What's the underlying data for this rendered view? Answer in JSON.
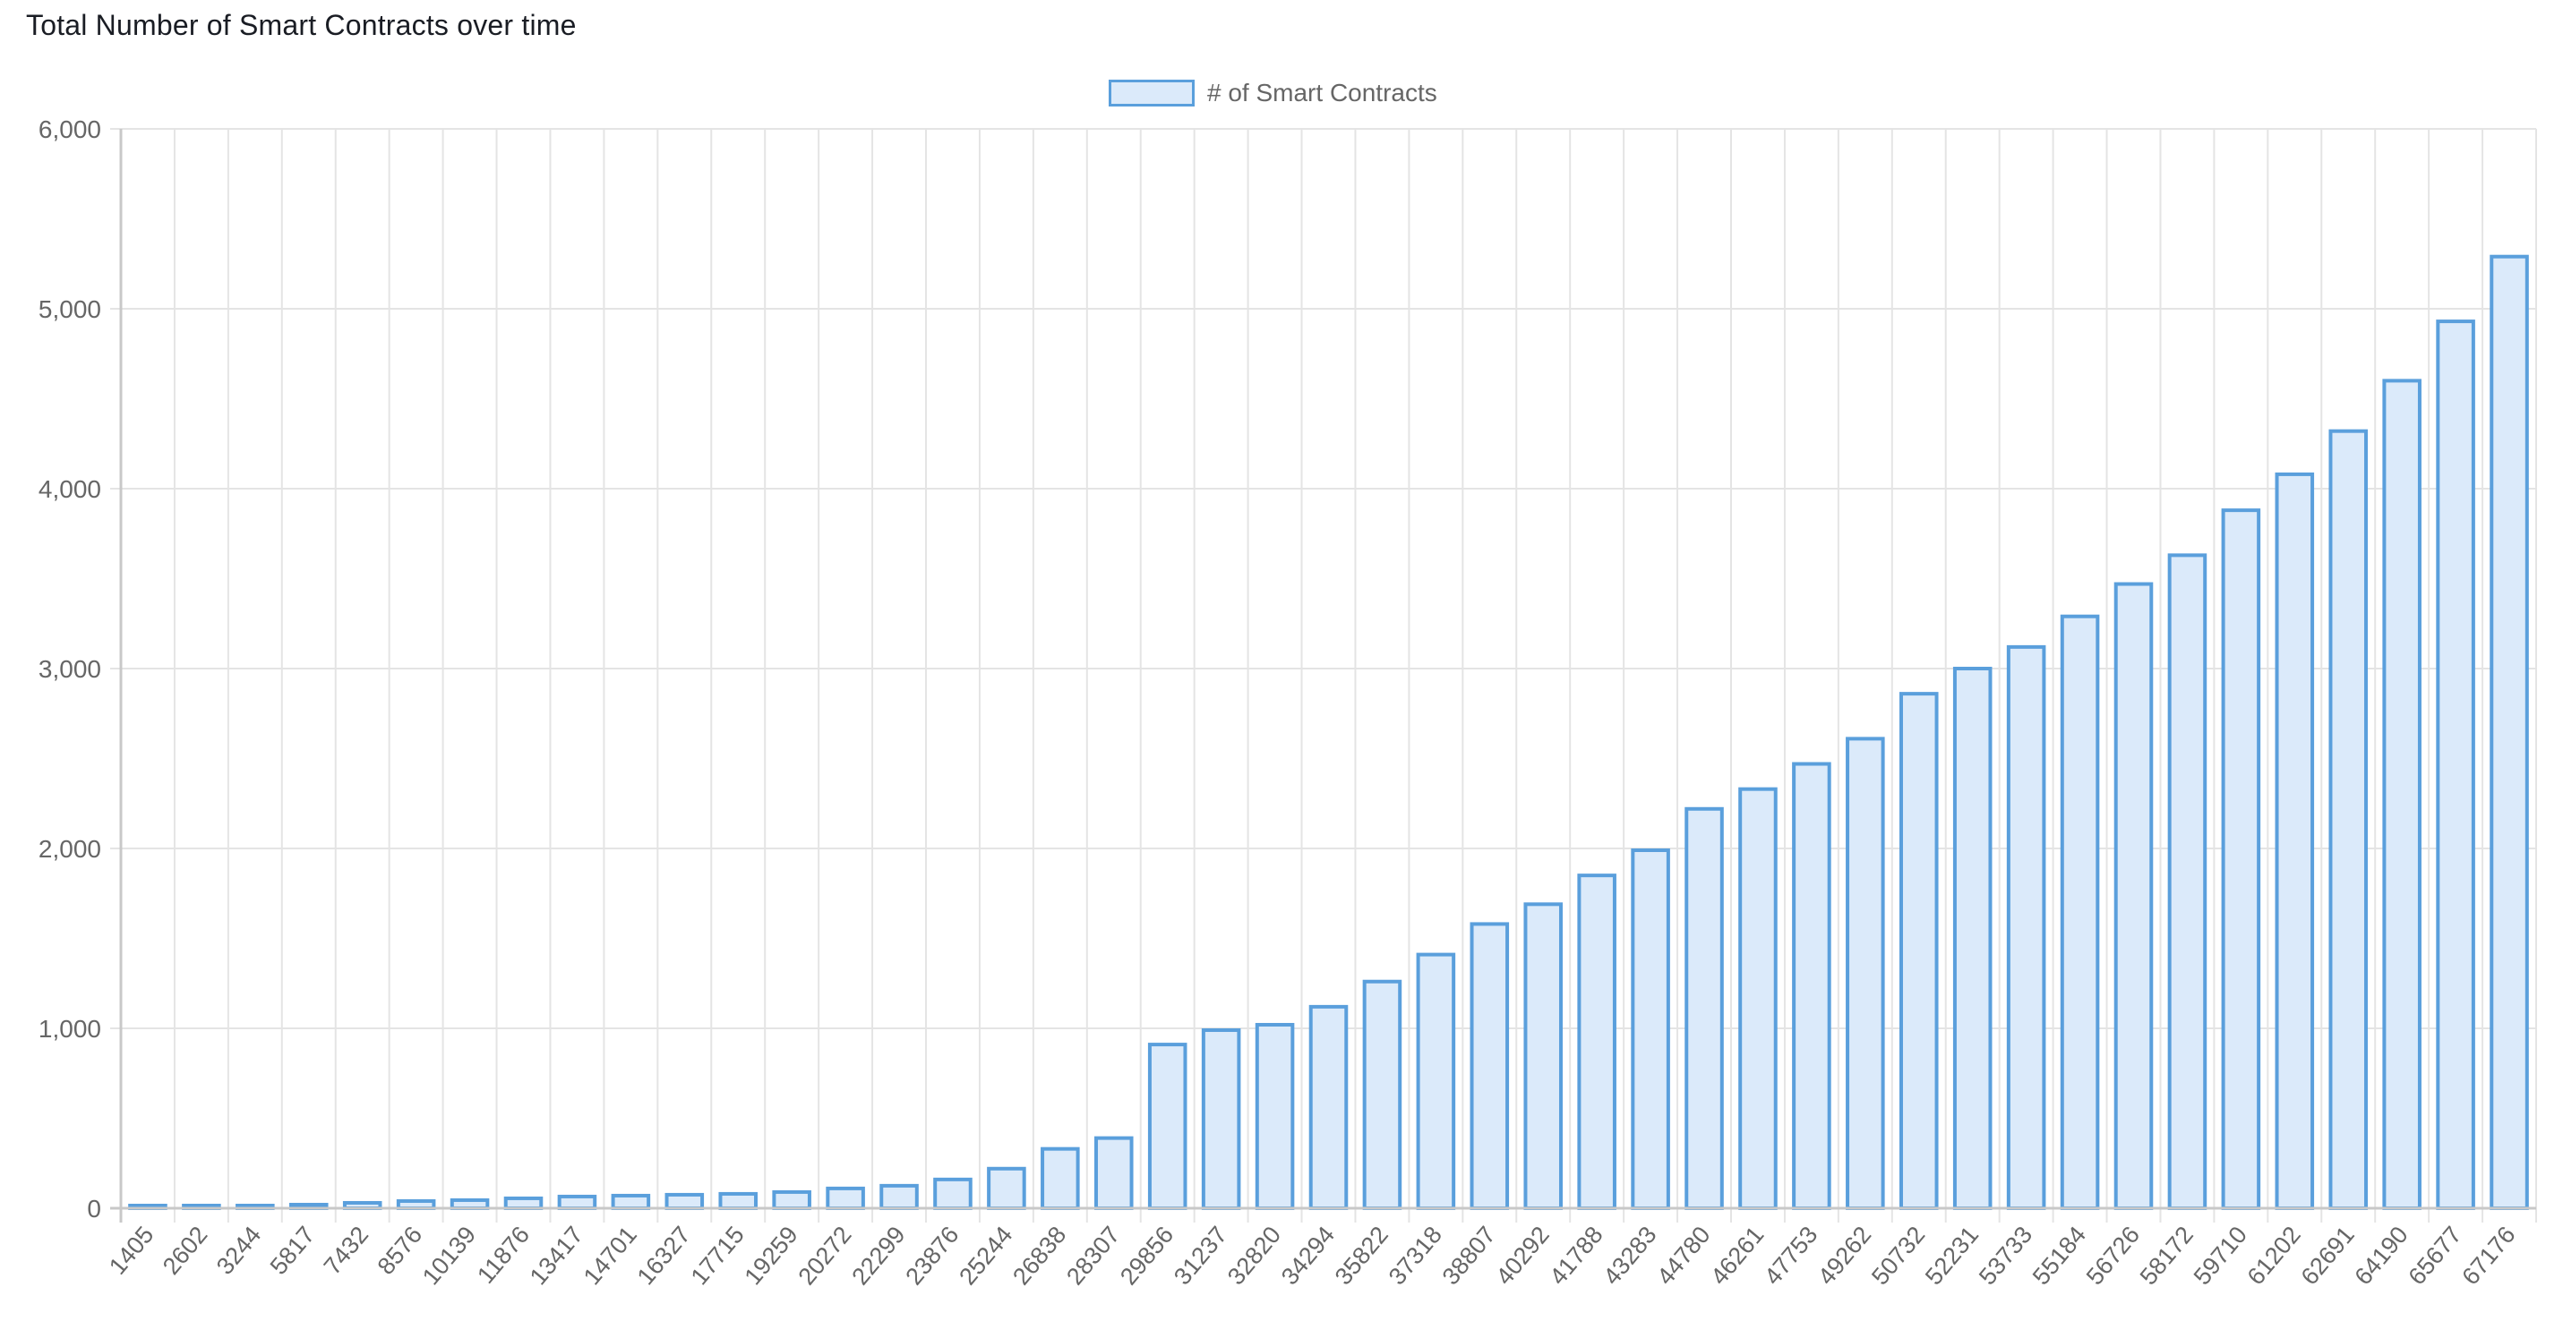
{
  "header": {
    "title": "Total Number of Smart Contracts over time"
  },
  "legend": {
    "label": "# of Smart Contracts",
    "swatch_fill": "#dbeafa",
    "swatch_border": "#5a9fdc"
  },
  "colors": {
    "bar_fill": "#dbeafa",
    "bar_border": "#5a9fdc",
    "grid": "#e4e4e4",
    "axis": "#c8c8c8",
    "tick_text": "#666666",
    "title_text": "#1a1d24"
  },
  "chart_data": {
    "type": "bar",
    "title": "Total Number of Smart Contracts over time",
    "xlabel": "",
    "ylabel": "",
    "ylim": [
      0,
      6000
    ],
    "yticks": [
      0,
      1000,
      2000,
      3000,
      4000,
      5000,
      6000
    ],
    "ytick_labels": [
      "0",
      "1,000",
      "2,000",
      "3,000",
      "4,000",
      "5,000",
      "6,000"
    ],
    "grid": true,
    "legend_position": "top-center",
    "categories": [
      "1405",
      "2602",
      "3244",
      "5817",
      "7432",
      "8576",
      "10139",
      "11876",
      "13417",
      "14701",
      "16327",
      "17715",
      "19259",
      "20272",
      "22299",
      "23876",
      "25244",
      "26838",
      "28307",
      "29856",
      "31237",
      "32820",
      "34294",
      "35822",
      "37318",
      "38807",
      "40292",
      "41788",
      "43283",
      "44780",
      "46261",
      "47753",
      "49262",
      "50732",
      "52231",
      "53733",
      "55184",
      "56726",
      "58172",
      "59710",
      "61202",
      "62691",
      "64190",
      "65677",
      "67176"
    ],
    "series": [
      {
        "name": "# of Smart Contracts",
        "values": [
          5,
          8,
          12,
          20,
          30,
          40,
          45,
          55,
          65,
          70,
          75,
          80,
          90,
          110,
          125,
          160,
          220,
          330,
          390,
          910,
          990,
          1020,
          1120,
          1260,
          1410,
          1580,
          1690,
          1850,
          1990,
          2220,
          2330,
          2470,
          2610,
          2860,
          3000,
          3120,
          3290,
          3470,
          3630,
          3880,
          4080,
          4320,
          4600,
          4930,
          5290
        ]
      }
    ]
  }
}
